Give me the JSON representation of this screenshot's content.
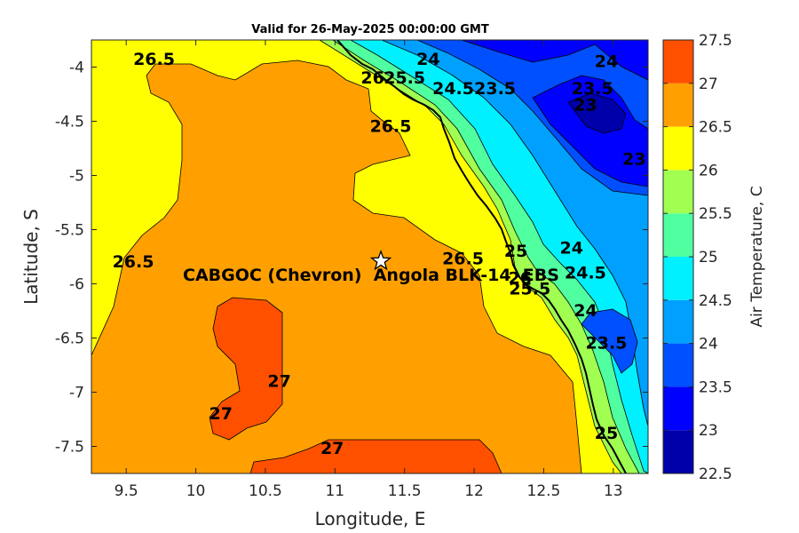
{
  "chart_data": {
    "type": "heatmap",
    "title": "Valid for 26-May-2025 00:00:00 GMT",
    "xlabel": "Longitude, E",
    "ylabel": "Latitude, S",
    "xlim": [
      9.25,
      13.25
    ],
    "ylim": [
      -7.75,
      -3.75
    ],
    "xticks": [
      9.5,
      10,
      10.5,
      11,
      11.5,
      12,
      12.5,
      13
    ],
    "xtick_labels": [
      "9.5",
      "10",
      "10.5",
      "11",
      "11.5",
      "12",
      "12.5",
      "13"
    ],
    "yticks": [
      -4,
      -4.5,
      -5,
      -5.5,
      -6,
      -6.5,
      -7,
      -7.5
    ],
    "ytick_labels": [
      "-4",
      "-4.5",
      "-5",
      "-5.5",
      "-6",
      "-6.5",
      "-7",
      "-7.5"
    ],
    "colorbar": {
      "label": "Air Temperature, C",
      "levels": [
        22.5,
        23,
        23.5,
        24,
        24.5,
        25,
        25.5,
        26,
        26.5,
        27,
        27.5
      ],
      "level_labels": [
        "22.5",
        "23",
        "23.5",
        "24",
        "24.5",
        "25",
        "25.5",
        "26",
        "26.5",
        "27",
        "27.5"
      ],
      "colors": [
        "#0000aa",
        "#0000ff",
        "#0050ff",
        "#00a0ff",
        "#00f0ff",
        "#50ffa0",
        "#a0ff50",
        "#ffff00",
        "#ffa000",
        "#ff5000",
        "#ff0000"
      ]
    },
    "station": {
      "name": "CABGOC (Chevron)  Angola BLK-14  EBS",
      "lon": 11.33,
      "lat": -5.79,
      "marker": "star"
    },
    "contour_labels": [
      {
        "text": "26.5",
        "lon": 9.7,
        "lat": -3.98
      },
      {
        "text": "26",
        "lon": 11.27,
        "lat": -4.15
      },
      {
        "text": "25.5",
        "lon": 11.5,
        "lat": -4.15
      },
      {
        "text": "24",
        "lon": 11.67,
        "lat": -3.98
      },
      {
        "text": "24.5",
        "lon": 11.85,
        "lat": -4.25
      },
      {
        "text": "23.5",
        "lon": 12.15,
        "lat": -4.25
      },
      {
        "text": "24",
        "lon": 12.95,
        "lat": -4.0
      },
      {
        "text": "23.5",
        "lon": 12.85,
        "lat": -4.25
      },
      {
        "text": "23",
        "lon": 12.8,
        "lat": -4.4
      },
      {
        "text": "23",
        "lon": 13.15,
        "lat": -4.9
      },
      {
        "text": "26.5",
        "lon": 11.4,
        "lat": -4.6
      },
      {
        "text": "26.5",
        "lon": 9.55,
        "lat": -5.85
      },
      {
        "text": "26.5",
        "lon": 11.92,
        "lat": -5.82
      },
      {
        "text": "25",
        "lon": 12.3,
        "lat": -5.75
      },
      {
        "text": "24",
        "lon": 12.7,
        "lat": -5.72
      },
      {
        "text": "24.5",
        "lon": 12.8,
        "lat": -5.95
      },
      {
        "text": "24",
        "lon": 12.8,
        "lat": -6.3
      },
      {
        "text": "23.5",
        "lon": 12.95,
        "lat": -6.6
      },
      {
        "text": "25.5",
        "lon": 12.4,
        "lat": -6.1
      },
      {
        "text": "26",
        "lon": 12.33,
        "lat": -6.0
      },
      {
        "text": "25",
        "lon": 12.95,
        "lat": -7.43
      },
      {
        "text": "27",
        "lon": 10.6,
        "lat": -6.95
      },
      {
        "text": "27",
        "lon": 10.18,
        "lat": -7.25
      },
      {
        "text": "27",
        "lon": 10.98,
        "lat": -7.57
      }
    ]
  }
}
